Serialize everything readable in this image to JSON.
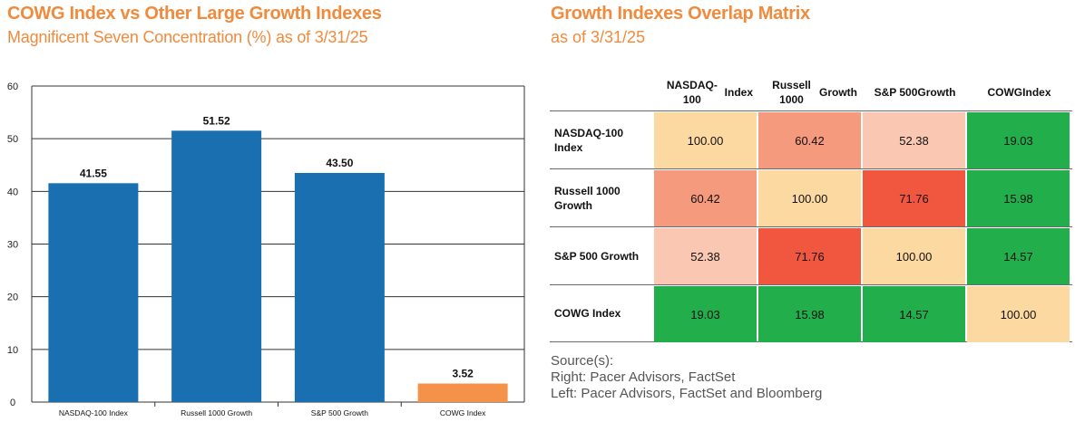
{
  "left_panel": {
    "title": "COWG Index vs Other Large Growth Indexes",
    "subtitle": "Magnificent Seven Concentration (%) as of 3/31/25"
  },
  "right_panel": {
    "title": "Growth Indexes Overlap Matrix",
    "subtitle": "as of 3/31/25"
  },
  "chart_data": {
    "type": "bar",
    "title": "COWG Index vs Other Large Growth Indexes",
    "subtitle": "Magnificent Seven Concentration (%) as of 3/31/25",
    "categories": [
      "NASDAQ-100 Index",
      "Russell 1000 Growth",
      "S&P 500 Growth",
      "COWG Index"
    ],
    "values": [
      41.55,
      51.52,
      43.5,
      3.52
    ],
    "value_labels": [
      "41.55",
      "51.52",
      "43.50",
      "3.52"
    ],
    "colors": [
      "#1a6fb0",
      "#1a6fb0",
      "#1a6fb0",
      "#f5924a"
    ],
    "ylim": [
      0,
      60
    ],
    "yticks": [
      0,
      10,
      20,
      30,
      40,
      50,
      60
    ],
    "grid": true,
    "xlabel": "",
    "ylabel": ""
  },
  "matrix": {
    "columns": [
      [
        "NASDAQ-100",
        "Index"
      ],
      [
        "Russell 1000",
        "Growth"
      ],
      [
        "S&P 500",
        "Growth"
      ],
      [
        "COWG",
        "Index"
      ]
    ],
    "rows": [
      {
        "label": [
          "NASDAQ-100",
          "Index"
        ],
        "values": [
          "100.00",
          "60.42",
          "52.38",
          "19.03"
        ],
        "colors": [
          "#fdd9a2",
          "#f59a7c",
          "#fac8b2",
          "#22ae4b"
        ]
      },
      {
        "label": [
          "Russell 1000",
          "Growth"
        ],
        "values": [
          "60.42",
          "100.00",
          "71.76",
          "15.98"
        ],
        "colors": [
          "#f59a7c",
          "#fdd9a2",
          "#f1573f",
          "#22ae4b"
        ]
      },
      {
        "label": [
          "S&P 500 Growth"
        ],
        "values": [
          "52.38",
          "71.76",
          "100.00",
          "14.57"
        ],
        "colors": [
          "#fac8b2",
          "#f1573f",
          "#fdd9a2",
          "#22ae4b"
        ]
      },
      {
        "label": [
          "COWG Index"
        ],
        "values": [
          "19.03",
          "15.98",
          "14.57",
          "100.00"
        ],
        "colors": [
          "#22ae4b",
          "#22ae4b",
          "#22ae4b",
          "#fdd9a2"
        ]
      }
    ]
  },
  "source": {
    "heading": "Source(s):",
    "right": "Right: Pacer Advisors, FactSet",
    "left": "Left: Pacer Advisors, FactSet and Bloomberg"
  }
}
